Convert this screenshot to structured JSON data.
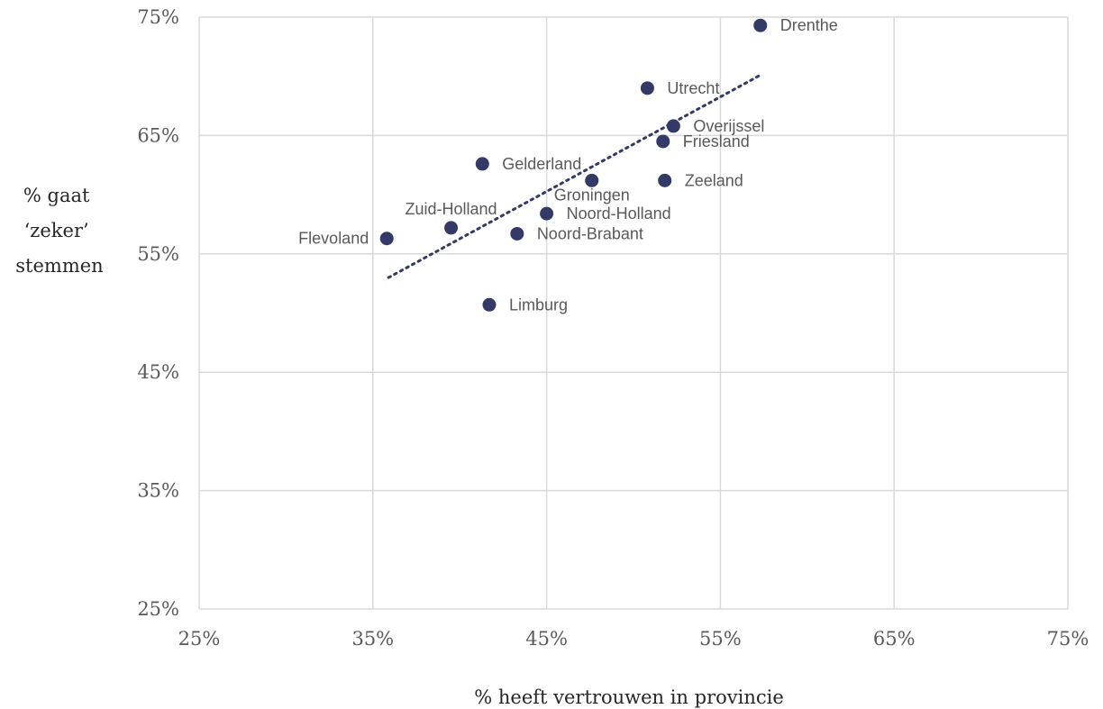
{
  "chart_data": {
    "type": "scatter",
    "xlabel": "% heeft vertrouwen in provincie",
    "ylabel": [
      "% gaat",
      "‘zeker’",
      "stemmen"
    ],
    "xlim": [
      0.25,
      0.75
    ],
    "ylim": [
      0.25,
      0.75
    ],
    "x_ticks": [
      0.25,
      0.35,
      0.45,
      0.55,
      0.65,
      0.75
    ],
    "y_ticks": [
      0.25,
      0.35,
      0.45,
      0.55,
      0.65,
      0.75
    ],
    "x_tick_labels": [
      "25%",
      "35%",
      "45%",
      "55%",
      "65%",
      "75%"
    ],
    "y_tick_labels": [
      "25%",
      "35%",
      "45%",
      "55%",
      "65%",
      "75%"
    ],
    "grid": true,
    "marker_color": "#333a66",
    "trendline": {
      "style": "dotted",
      "x": [
        0.359,
        0.573
      ],
      "y": [
        0.53,
        0.701
      ]
    },
    "points": [
      {
        "label": "Drenthe",
        "x": 0.573,
        "y": 0.743,
        "label_pos": "right"
      },
      {
        "label": "Utrecht",
        "x": 0.508,
        "y": 0.69,
        "label_pos": "right"
      },
      {
        "label": "Overijssel",
        "x": 0.523,
        "y": 0.658,
        "label_pos": "right"
      },
      {
        "label": "Friesland",
        "x": 0.517,
        "y": 0.645,
        "label_pos": "right"
      },
      {
        "label": "Gelderland",
        "x": 0.413,
        "y": 0.626,
        "label_pos": "right"
      },
      {
        "label": "Groningen",
        "x": 0.476,
        "y": 0.612,
        "label_pos": "below"
      },
      {
        "label": "Zeeland",
        "x": 0.518,
        "y": 0.612,
        "label_pos": "right"
      },
      {
        "label": "Noord-Holland",
        "x": 0.45,
        "y": 0.584,
        "label_pos": "right"
      },
      {
        "label": "Zuid-Holland",
        "x": 0.395,
        "y": 0.572,
        "label_pos": "above"
      },
      {
        "label": "Noord-Brabant",
        "x": 0.433,
        "y": 0.567,
        "label_pos": "right"
      },
      {
        "label": "Flevoland",
        "x": 0.358,
        "y": 0.563,
        "label_pos": "left"
      },
      {
        "label": "Limburg",
        "x": 0.417,
        "y": 0.507,
        "label_pos": "right"
      }
    ]
  }
}
